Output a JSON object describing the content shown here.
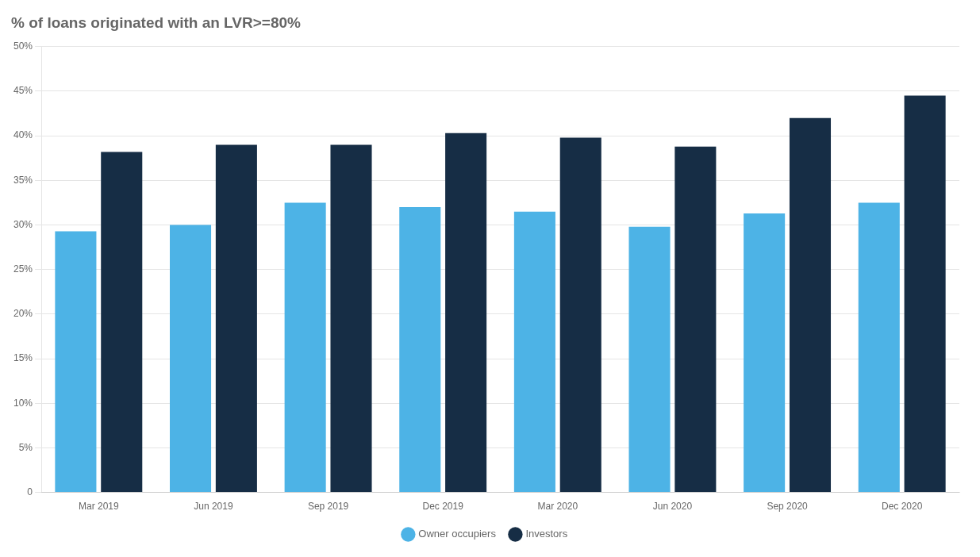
{
  "chart_data": {
    "type": "bar",
    "title": "% of loans originated with an LVR>=80%",
    "categories": [
      "Mar 2019",
      "Jun 2019",
      "Sep 2019",
      "Dec 2019",
      "Mar 2020",
      "Jun 2020",
      "Sep 2020",
      "Dec 2020"
    ],
    "series": [
      {
        "name": "Owner occupiers",
        "color": "#4DB3E6",
        "values": [
          29.3,
          30.0,
          32.5,
          32.0,
          31.5,
          29.8,
          31.3,
          32.5
        ]
      },
      {
        "name": "Investors",
        "color": "#162D45",
        "values": [
          38.2,
          39.0,
          39.0,
          40.3,
          39.8,
          38.8,
          42.0,
          44.5
        ]
      }
    ],
    "ylim": [
      0,
      50
    ],
    "yticks": [
      0,
      {
        "value": 5,
        "label": "5%"
      },
      {
        "value": 10,
        "label": "10%"
      },
      {
        "value": 15,
        "label": "15%"
      },
      {
        "value": 20,
        "label": "20%"
      },
      {
        "value": 25,
        "label": "25%"
      },
      {
        "value": 30,
        "label": "30%"
      },
      {
        "value": 35,
        "label": "35%"
      },
      {
        "value": 40,
        "label": "40%"
      },
      {
        "value": 45,
        "label": "45%"
      },
      {
        "value": 50,
        "label": "50%"
      }
    ],
    "grid": true,
    "legend": "bottom"
  }
}
